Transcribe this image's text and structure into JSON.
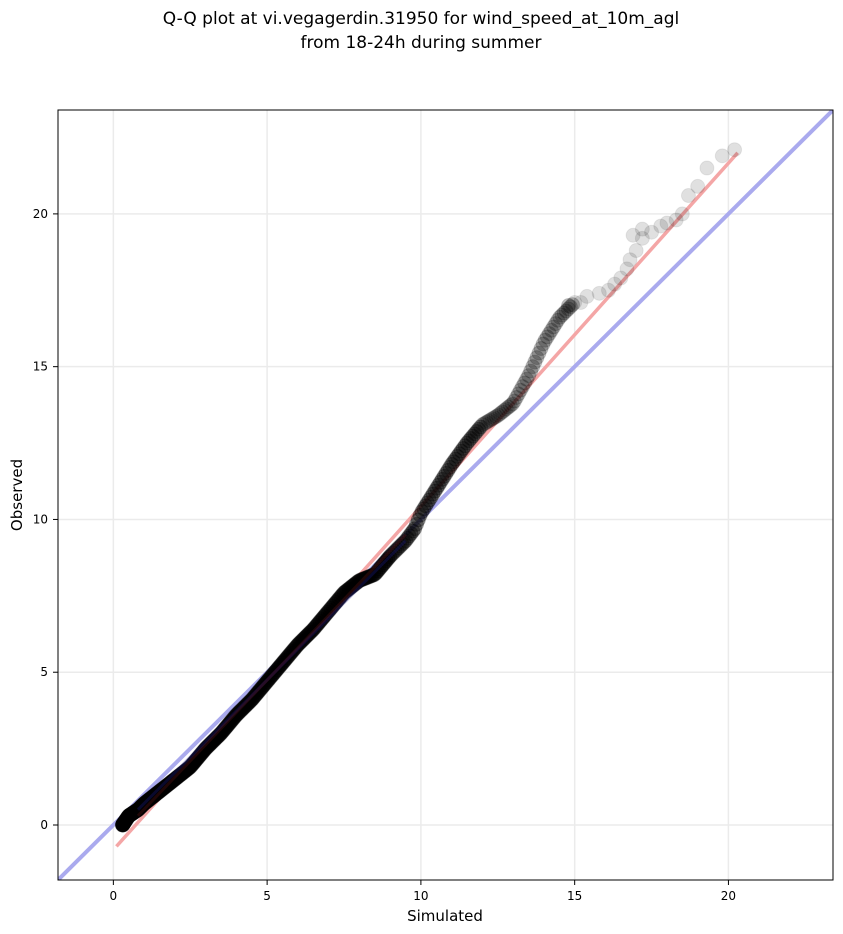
{
  "chart_data": {
    "type": "scatter",
    "title_lines": [
      "Q-Q plot at vi.vegagerdin.31950 for wind_speed_at_10m_agl",
      "from 18-24h during summer"
    ],
    "xlabel": "Simulated",
    "ylabel": "Observed",
    "xlim": [
      -1.8,
      23.4
    ],
    "ylim": [
      -1.8,
      23.4
    ],
    "xticks": [
      0,
      5,
      10,
      15,
      20
    ],
    "yticks": [
      0,
      5,
      10,
      15,
      20
    ],
    "grid": true,
    "colors": {
      "points": "#000000",
      "identity_line": "#aaaaee",
      "fit_line": "#f4a6a6",
      "dense_tint": "#1a1a80",
      "fit_tint": "#801a1a"
    },
    "reference_lines": [
      {
        "kind": "identity",
        "x": [
          -1.8,
          23.4
        ],
        "y": [
          -1.8,
          23.4
        ]
      },
      {
        "kind": "fit",
        "x": [
          0.1,
          20.3
        ],
        "y": [
          -0.7,
          22.0
        ]
      }
    ],
    "qq_curve": {
      "x": [
        0.3,
        0.5,
        0.8,
        1.0,
        1.5,
        2.0,
        2.5,
        3.0,
        3.5,
        4.0,
        4.5,
        5.0,
        5.5,
        6.0,
        6.5,
        7.0,
        7.5,
        8.0,
        8.5,
        9.0,
        9.5,
        9.8,
        10.0,
        10.5,
        11.0,
        11.5,
        12.0,
        12.5,
        13.0,
        13.5,
        14.0,
        14.5,
        15.0
      ],
      "y": [
        0.0,
        0.3,
        0.5,
        0.7,
        1.1,
        1.5,
        1.9,
        2.5,
        3.0,
        3.6,
        4.1,
        4.7,
        5.3,
        5.9,
        6.4,
        7.0,
        7.6,
        8.0,
        8.2,
        8.8,
        9.3,
        9.7,
        10.2,
        11.0,
        11.8,
        12.5,
        13.1,
        13.4,
        13.8,
        14.7,
        15.8,
        16.6,
        17.1
      ]
    },
    "tail_points": [
      [
        15.4,
        17.3
      ],
      [
        15.8,
        17.4
      ],
      [
        16.1,
        17.5
      ],
      [
        16.3,
        17.7
      ],
      [
        16.5,
        17.9
      ],
      [
        16.7,
        18.2
      ],
      [
        16.8,
        18.5
      ],
      [
        17.0,
        18.8
      ],
      [
        17.2,
        19.2
      ],
      [
        17.5,
        19.4
      ],
      [
        17.8,
        19.6
      ],
      [
        18.0,
        19.7
      ],
      [
        18.3,
        19.8
      ],
      [
        18.5,
        20.0
      ],
      [
        18.7,
        20.6
      ],
      [
        19.0,
        20.9
      ],
      [
        19.3,
        21.5
      ],
      [
        19.8,
        21.9
      ],
      [
        20.2,
        22.1
      ],
      [
        16.9,
        19.3
      ],
      [
        17.2,
        19.5
      ],
      [
        14.8,
        17.0
      ],
      [
        15.2,
        17.1
      ]
    ]
  }
}
